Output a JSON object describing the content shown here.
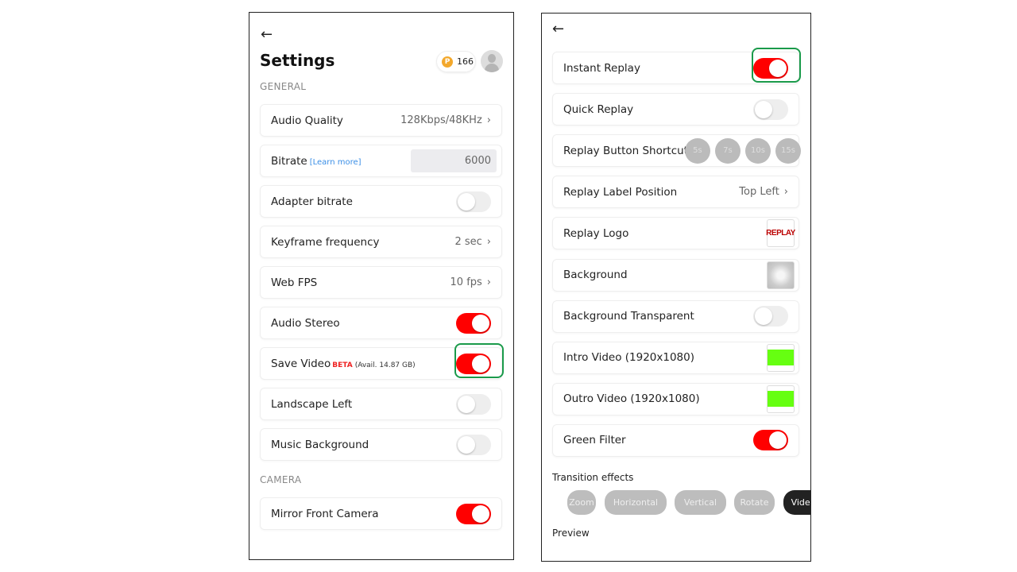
{
  "left": {
    "title": "Settings",
    "coins": "166",
    "coin_symbol": "P",
    "section_general": "GENERAL",
    "section_camera": "CAMERA",
    "rows": [
      {
        "label": "Audio Quality",
        "type": "value",
        "value": "128Kbps/48KHz"
      },
      {
        "label": "Bitrate",
        "type": "input",
        "link": "[Learn more]",
        "value": "6000"
      },
      {
        "label": "Adapter bitrate",
        "type": "toggle",
        "on": false
      },
      {
        "label": "Keyframe frequency",
        "type": "value",
        "value": "2 sec"
      },
      {
        "label": "Web FPS",
        "type": "value",
        "value": "10 fps"
      },
      {
        "label": "Audio Stereo",
        "type": "toggle",
        "on": true
      },
      {
        "label": "Save Video",
        "type": "toggle",
        "on": true,
        "badge": "BETA",
        "note": "(Avail. 14.87 GB)",
        "highlight": true
      },
      {
        "label": "Landscape Left",
        "type": "toggle",
        "on": false
      },
      {
        "label": "Music Background",
        "type": "toggle",
        "on": false
      }
    ],
    "camera_rows": [
      {
        "label": "Mirror Front Camera",
        "type": "toggle",
        "on": true
      }
    ]
  },
  "right": {
    "rows": [
      {
        "label": "Instant Replay",
        "type": "toggle",
        "on": true,
        "highlight": true
      },
      {
        "label": "Quick Replay",
        "type": "toggle",
        "on": false
      },
      {
        "label": "Replay Button Shortcut",
        "type": "shortcuts",
        "options": [
          "5s",
          "7s",
          "10s",
          "15s"
        ]
      },
      {
        "label": "Replay Label Position",
        "type": "value",
        "value": "Top Left"
      },
      {
        "label": "Replay Logo",
        "type": "logo",
        "logo_text": "REPLAY"
      },
      {
        "label": "Background",
        "type": "bg"
      },
      {
        "label": "Background Transparent",
        "type": "toggle",
        "on": false
      },
      {
        "label": "Intro Video (1920x1080)",
        "type": "green"
      },
      {
        "label": "Outro Video (1920x1080)",
        "type": "green"
      },
      {
        "label": "Green Filter",
        "type": "toggle",
        "on": true
      }
    ],
    "transition_label": "Transition effects",
    "transitions": [
      "Zoom",
      "Horizontal",
      "Vertical",
      "Rotate",
      "Video"
    ],
    "selected_transition": "Video",
    "preview_label": "Preview"
  },
  "colors": {
    "toggle_on": "#ff0000",
    "highlight": "#1a9a4a",
    "accent_link": "#3a8ee6"
  }
}
